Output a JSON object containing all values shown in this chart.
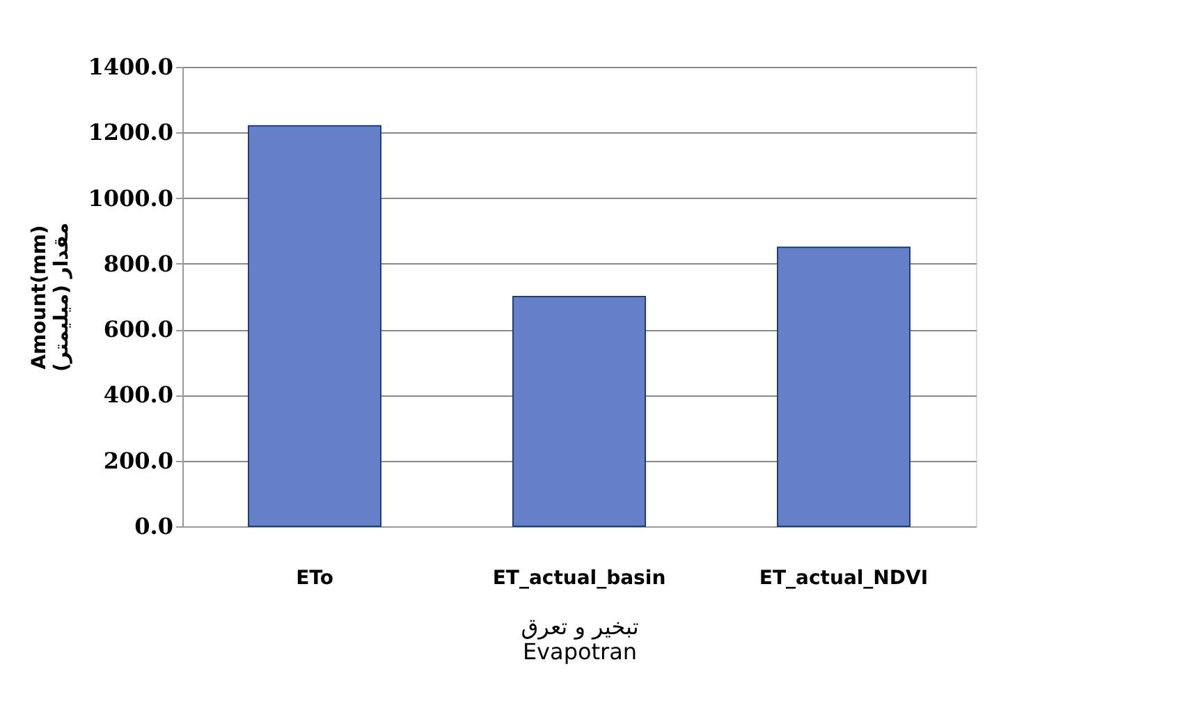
{
  "chart_data": {
    "type": "bar",
    "categories": [
      "ETo",
      "ET_actual_basin",
      "ET_actual_NDVI"
    ],
    "values": [
      1220,
      700,
      850
    ],
    "color": "#6380c8",
    "xlabel": "تبخیر و تعرق\nEvapotran",
    "ylabel": "Amount(mm)\nمقدار (میلیمتر)",
    "ylim": [
      0,
      1400
    ],
    "yticks": [
      {
        "value": 0,
        "label": "0.0"
      },
      {
        "value": 200,
        "label": "200.0"
      },
      {
        "value": 400,
        "label": "400.0"
      },
      {
        "value": 600,
        "label": "600.0"
      },
      {
        "value": 800,
        "label": "800.0"
      },
      {
        "value": 1000,
        "label": "1000.0"
      },
      {
        "value": 1200,
        "label": "1200.0"
      },
      {
        "value": 1400,
        "label": "1400.0"
      }
    ],
    "grid": "y",
    "legend": false
  }
}
